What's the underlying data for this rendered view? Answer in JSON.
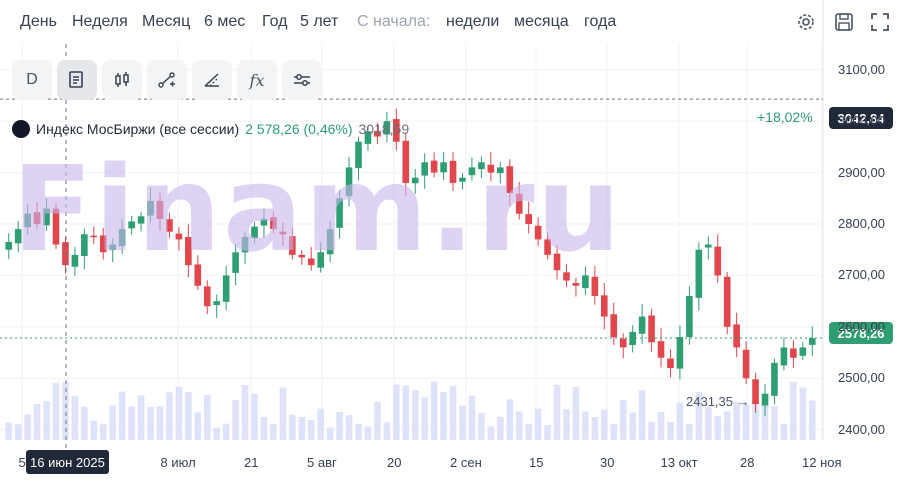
{
  "periods": {
    "items": [
      "День",
      "Неделя",
      "Месяц",
      "6 мес",
      "Год",
      "5 лет"
    ],
    "since_label": "С начала:",
    "since_items": [
      "недели",
      "месяца",
      "года"
    ]
  },
  "top_icons": [
    "gear-icon",
    "save-icon",
    "fullscreen-icon"
  ],
  "toolbar": {
    "d_label": "D",
    "fx_label": "fx",
    "icons": [
      "chart-type-icon",
      "candles-icon",
      "indicator-line-icon",
      "drawing-icon",
      "function-icon",
      "settings-sliders-icon"
    ]
  },
  "legend": {
    "name": "Индекс МосБиржи (все сессии)",
    "value": "2 578,26 (0,46%)",
    "high": "3018,59"
  },
  "watermark": "Finam.ru",
  "colors": {
    "up": "#2f9e72",
    "down": "#e0464b",
    "volume": "#dfe3fa",
    "accent_dark": "#1f2937"
  },
  "chart_data": {
    "type": "candlestick",
    "title": "Индекс МосБиржи (все сессии)",
    "ylim": [
      2380,
      3150
    ],
    "y_ticks": [
      "3100,00",
      "3000,00",
      "2900,00",
      "2800,00",
      "2700,00",
      "2600,00",
      "2500,00",
      "2400,00"
    ],
    "x_ticks": [
      "5",
      "8 июл",
      "21",
      "5 авг",
      "20",
      "2 сен",
      "15",
      "30",
      "13 окт",
      "28",
      "12 ноя"
    ],
    "crosshair_x_label": "16 июн 2025",
    "current_price_label": "2578,26",
    "ref_price_label": "3042,84",
    "pct_label": "+18,02%",
    "min_label": "2431,35",
    "closes": [
      2765,
      2790,
      2820,
      2800,
      2830,
      2760,
      2720,
      2740,
      2780,
      2775,
      2745,
      2760,
      2790,
      2805,
      2815,
      2845,
      2810,
      2785,
      2770,
      2720,
      2680,
      2640,
      2650,
      2700,
      2745,
      2775,
      2795,
      2810,
      2790,
      2780,
      2740,
      2735,
      2720,
      2745,
      2790,
      2850,
      2910,
      2960,
      2980,
      2970,
      3000,
      2960,
      2880,
      2890,
      2920,
      2900,
      2920,
      2880,
      2890,
      2910,
      2920,
      2900,
      2910,
      2860,
      2820,
      2800,
      2770,
      2740,
      2710,
      2690,
      2680,
      2700,
      2660,
      2620,
      2580,
      2560,
      2590,
      2620,
      2570,
      2540,
      2520,
      2580,
      2660,
      2750,
      2760,
      2700,
      2600,
      2560,
      2500,
      2450,
      2470,
      2530,
      2560,
      2540,
      2560,
      2578
    ]
  }
}
